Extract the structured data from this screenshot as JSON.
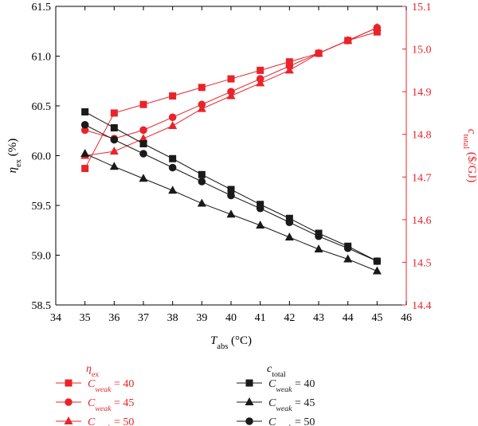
{
  "chart_data": {
    "type": "line",
    "xlabel": {
      "base": "T",
      "sub": "abs",
      "unit": " (°C)"
    },
    "ylabel_left": {
      "base": "η",
      "sub": "ex",
      "unit": " (%)"
    },
    "ylabel_right": {
      "base": "c",
      "sub": "total",
      "unit": " ($/GJ)"
    },
    "x_ticks": [
      "34",
      "35",
      "36",
      "37",
      "38",
      "39",
      "40",
      "41",
      "42",
      "43",
      "44",
      "45",
      "46"
    ],
    "y_left_ticks": [
      "58.5",
      "59.0",
      "59.5",
      "60.0",
      "60.5",
      "61.0",
      "61.5"
    ],
    "y_right_ticks": [
      "14.4",
      "14.5",
      "14.6",
      "14.7",
      "14.8",
      "14.9",
      "15.0",
      "15.1"
    ],
    "xlim": [
      34,
      46
    ],
    "ylim_left": [
      58.5,
      61.5
    ],
    "ylim_right": [
      14.4,
      15.1
    ],
    "colors": {
      "eta": "#e8242a",
      "cost": "#1a1a1a"
    },
    "x": [
      35,
      36,
      37,
      38,
      39,
      40,
      41,
      42,
      43,
      44,
      45
    ],
    "series": [
      {
        "name": "C_weak = 40",
        "group": "eta",
        "axis": "right",
        "marker": "square",
        "values": [
          14.72,
          14.85,
          14.87,
          14.89,
          14.91,
          14.93,
          14.95,
          14.97,
          14.99,
          15.02,
          15.04
        ]
      },
      {
        "name": "C_weak = 45",
        "group": "eta",
        "axis": "right",
        "marker": "circle",
        "values": [
          14.81,
          14.79,
          14.81,
          14.84,
          14.87,
          14.9,
          14.93,
          14.96,
          14.99,
          15.02,
          15.05
        ]
      },
      {
        "name": "C_weak = 50",
        "group": "eta",
        "axis": "right",
        "marker": "triangle",
        "values": [
          14.75,
          14.76,
          14.79,
          14.82,
          14.86,
          14.89,
          14.92,
          14.95,
          14.99,
          15.02,
          15.05
        ]
      },
      {
        "name": "C_weak = 40",
        "group": "cost",
        "axis": "left",
        "marker": "square",
        "values": [
          60.44,
          60.28,
          60.12,
          59.97,
          59.81,
          59.66,
          59.51,
          59.37,
          59.22,
          59.09,
          58.94
        ]
      },
      {
        "name": "C_weak = 45",
        "group": "cost",
        "axis": "left",
        "marker": "triangle",
        "values": [
          60.02,
          59.89,
          59.77,
          59.65,
          59.52,
          59.41,
          59.3,
          59.18,
          59.06,
          58.96,
          58.84
        ]
      },
      {
        "name": "C_weak = 50",
        "group": "cost",
        "axis": "left",
        "marker": "circle",
        "values": [
          60.31,
          60.16,
          60.02,
          59.88,
          59.74,
          59.6,
          59.47,
          59.33,
          59.19,
          59.07,
          58.94
        ]
      }
    ]
  },
  "legend": {
    "eta_title": {
      "base": "η",
      "sub": "ex"
    },
    "cost_title": {
      "base": "c",
      "sub": "total"
    },
    "eta_items": [
      {
        "prefix": "C",
        "sub": "weak",
        "value": " = 40",
        "marker": "square"
      },
      {
        "prefix": "C",
        "sub": "weak",
        "value": " = 45",
        "marker": "circle"
      },
      {
        "prefix": "C",
        "sub": "weak",
        "value": " = 50",
        "marker": "triangle"
      }
    ],
    "cost_items": [
      {
        "prefix": "C",
        "sub": "weak",
        "value": " = 40",
        "marker": "square"
      },
      {
        "prefix": "C",
        "sub": "weak",
        "value": " = 45",
        "marker": "triangle"
      },
      {
        "prefix": "C",
        "sub": "weak",
        "value": " = 50",
        "marker": "circle"
      }
    ]
  }
}
